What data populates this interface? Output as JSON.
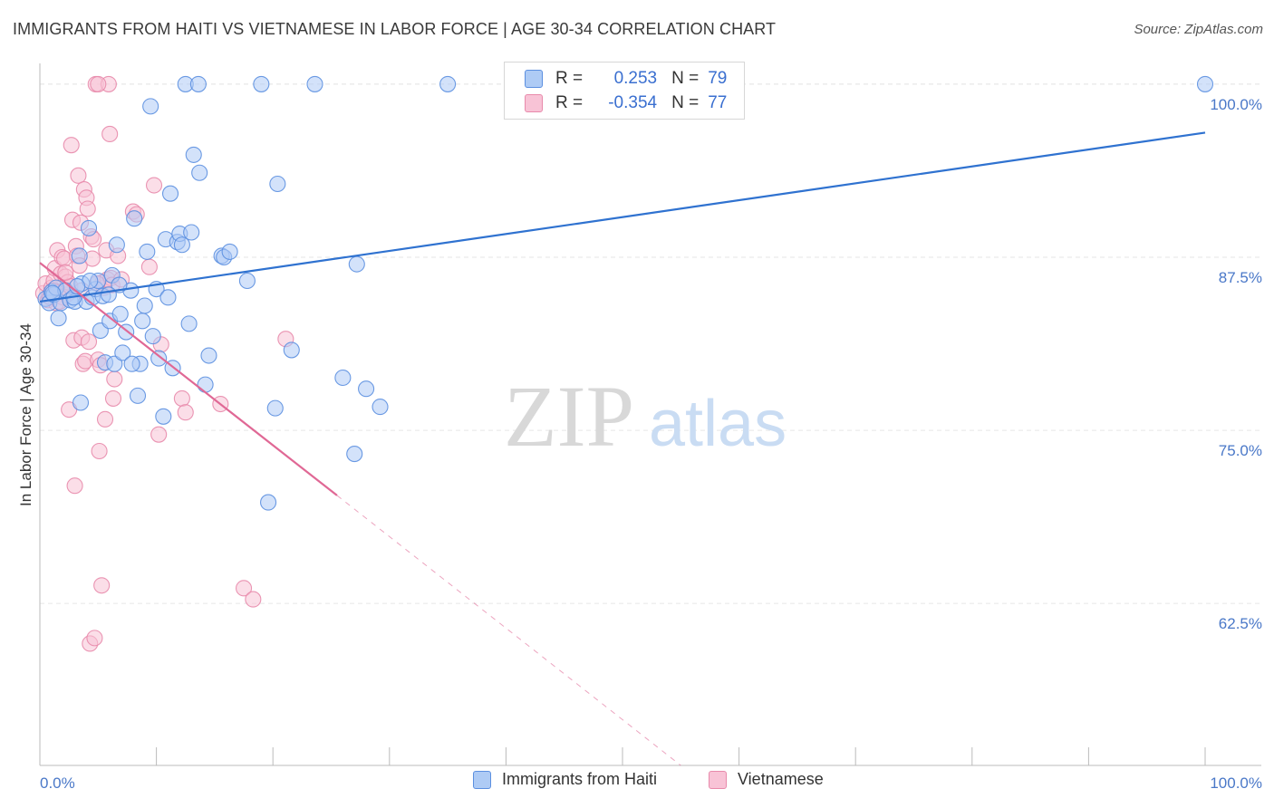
{
  "title": "IMMIGRANTS FROM HAITI VS VIETNAMESE IN LABOR FORCE | AGE 30-34 CORRELATION CHART",
  "source": "Source: ZipAtlas.com",
  "watermark": {
    "zip": "ZIP",
    "atlas": "atlas"
  },
  "legend": {
    "series1": {
      "r_label": "R =",
      "r_value": "0.253",
      "n_label": "N =",
      "n_value": "79"
    },
    "series2": {
      "r_label": "R =",
      "r_value": "-0.354",
      "n_label": "N =",
      "n_value": "77"
    }
  },
  "colors": {
    "blue_fill": "#aecbf5",
    "blue_stroke": "#5b8fe0",
    "blue_line": "#2f72d0",
    "pink_fill": "#f8c3d6",
    "pink_stroke": "#e88aab",
    "pink_line": "#e06895",
    "grid": "#e6e6e6",
    "axis": "#bbbbbb"
  },
  "chart_data": {
    "type": "scatter",
    "title": "IMMIGRANTS FROM HAITI VS VIETNAMESE IN LABOR FORCE | AGE 30-34 CORRELATION CHART",
    "xlabel": "",
    "ylabel": "In Labor Force | Age 30-34",
    "xlim": [
      0,
      100
    ],
    "ylim": [
      50.8,
      101.5
    ],
    "x_tick_labels": [
      "0.0%",
      "100.0%"
    ],
    "y_ticks": [
      62.5,
      75.0,
      87.5,
      100.0
    ],
    "y_tick_labels": [
      "62.5%",
      "75.0%",
      "87.5%",
      "100.0%"
    ],
    "series": [
      {
        "name": "Immigrants from Haiti",
        "color": "blue",
        "r": 0.253,
        "n": 79,
        "trend": {
          "x0": 0,
          "y0": 84.3,
          "x1": 100,
          "y1": 96.5
        },
        "points": [
          [
            0.5,
            84.5
          ],
          [
            0.8,
            84.2
          ],
          [
            1,
            85
          ],
          [
            1.2,
            84.8
          ],
          [
            1.4,
            85.3
          ],
          [
            1.6,
            83.1
          ],
          [
            1.8,
            84.2
          ],
          [
            2.2,
            85.1
          ],
          [
            2.6,
            84.4
          ],
          [
            3,
            84.3
          ],
          [
            3.4,
            87.6
          ],
          [
            3.5,
            77
          ],
          [
            3.6,
            85.6
          ],
          [
            4,
            84.3
          ],
          [
            4.2,
            89.6
          ],
          [
            4.5,
            84.6
          ],
          [
            4.8,
            85.2
          ],
          [
            5,
            85.8
          ],
          [
            5.2,
            82.2
          ],
          [
            5.4,
            84.7
          ],
          [
            5.6,
            79.9
          ],
          [
            6,
            82.9
          ],
          [
            6.2,
            86.2
          ],
          [
            6.4,
            79.8
          ],
          [
            6.6,
            88.4
          ],
          [
            6.9,
            83.4
          ],
          [
            7.1,
            80.6
          ],
          [
            7.4,
            82.1
          ],
          [
            7.8,
            85.1
          ],
          [
            8.1,
            90.3
          ],
          [
            8.4,
            77.5
          ],
          [
            8.6,
            79.8
          ],
          [
            8.8,
            82.9
          ],
          [
            9,
            84
          ],
          [
            9.2,
            87.9
          ],
          [
            9.5,
            98.4
          ],
          [
            10,
            85.2
          ],
          [
            10.2,
            80.2
          ],
          [
            10.6,
            76
          ],
          [
            10.8,
            88.8
          ],
          [
            11,
            84.6
          ],
          [
            11.2,
            92.1
          ],
          [
            11.4,
            79.5
          ],
          [
            11.8,
            88.6
          ],
          [
            12,
            89.2
          ],
          [
            12.2,
            88.4
          ],
          [
            12.5,
            100
          ],
          [
            12.8,
            82.7
          ],
          [
            13,
            89.3
          ],
          [
            13.2,
            94.9
          ],
          [
            13.6,
            100
          ],
          [
            13.7,
            93.6
          ],
          [
            14.2,
            78.3
          ],
          [
            14.5,
            80.4
          ],
          [
            15.6,
            87.6
          ],
          [
            15.8,
            87.5
          ],
          [
            16.3,
            87.9
          ],
          [
            17.8,
            85.8
          ],
          [
            19,
            100
          ],
          [
            19.6,
            69.8
          ],
          [
            20.2,
            76.6
          ],
          [
            20.4,
            92.8
          ],
          [
            21.6,
            80.8
          ],
          [
            23.6,
            100
          ],
          [
            26,
            78.8
          ],
          [
            27,
            73.3
          ],
          [
            27.2,
            87
          ],
          [
            28,
            78
          ],
          [
            29.2,
            76.7
          ],
          [
            35,
            100
          ],
          [
            100,
            100
          ],
          [
            4.3,
            85.8
          ],
          [
            6.8,
            85.5
          ],
          [
            9.7,
            81.8
          ],
          [
            5.9,
            84.8
          ],
          [
            2.9,
            84.6
          ],
          [
            1.1,
            84.9
          ],
          [
            7.9,
            79.8
          ],
          [
            3.2,
            85.4
          ]
        ]
      },
      {
        "name": "Vietnamese",
        "color": "pink",
        "r": -0.354,
        "n": 77,
        "trend": {
          "x0": 0,
          "y0": 87.1,
          "x1": 25.5,
          "y1": 70.3
        },
        "trend_dashed": {
          "x0": 25.5,
          "y0": 70.3,
          "x1": 55,
          "y1": 50.8
        },
        "points": [
          [
            0.3,
            84.9
          ],
          [
            0.5,
            85.6
          ],
          [
            0.7,
            84.4
          ],
          [
            0.8,
            84.7
          ],
          [
            1,
            85.3
          ],
          [
            1.2,
            85.8
          ],
          [
            1.3,
            86.7
          ],
          [
            1.4,
            84.2
          ],
          [
            1.5,
            88
          ],
          [
            1.6,
            85
          ],
          [
            1.8,
            86.3
          ],
          [
            1.9,
            87.5
          ],
          [
            2,
            84.6
          ],
          [
            2.1,
            87.4
          ],
          [
            2.2,
            86.1
          ],
          [
            2.3,
            84.8
          ],
          [
            2.4,
            85.7
          ],
          [
            2.5,
            76.5
          ],
          [
            2.6,
            85.4
          ],
          [
            2.7,
            95.6
          ],
          [
            2.8,
            90.2
          ],
          [
            2.9,
            81.5
          ],
          [
            3,
            71
          ],
          [
            3.1,
            88.3
          ],
          [
            3.2,
            87.6
          ],
          [
            3.3,
            93.4
          ],
          [
            3.4,
            86.9
          ],
          [
            3.5,
            90
          ],
          [
            3.6,
            81.7
          ],
          [
            3.7,
            79.8
          ],
          [
            3.8,
            92.4
          ],
          [
            3.9,
            80
          ],
          [
            4,
            91.8
          ],
          [
            4.1,
            91
          ],
          [
            4.2,
            81.4
          ],
          [
            4.3,
            59.6
          ],
          [
            4.4,
            89
          ],
          [
            4.5,
            87.4
          ],
          [
            4.6,
            88.8
          ],
          [
            4.7,
            60
          ],
          [
            4.8,
            100
          ],
          [
            5,
            80.1
          ],
          [
            5.1,
            73.5
          ],
          [
            5.2,
            79.7
          ],
          [
            5.3,
            63.8
          ],
          [
            5.4,
            85.7
          ],
          [
            5.5,
            85.3
          ],
          [
            5.6,
            75.8
          ],
          [
            5.7,
            88
          ],
          [
            5.8,
            85.9
          ],
          [
            5.9,
            100
          ],
          [
            6,
            96.4
          ],
          [
            6.1,
            86
          ],
          [
            6.2,
            85.5
          ],
          [
            6.3,
            77.3
          ],
          [
            6.4,
            78.7
          ],
          [
            6.7,
            87.6
          ],
          [
            7,
            85.9
          ],
          [
            8,
            90.8
          ],
          [
            8.3,
            90.6
          ],
          [
            9.4,
            86.8
          ],
          [
            9.8,
            92.7
          ],
          [
            10.2,
            74.7
          ],
          [
            10.4,
            81.2
          ],
          [
            12.2,
            77.3
          ],
          [
            12.5,
            76.3
          ],
          [
            15.5,
            76.9
          ],
          [
            17.5,
            63.6
          ],
          [
            18.3,
            62.8
          ],
          [
            21.1,
            81.6
          ],
          [
            1.1,
            85.1
          ],
          [
            0.9,
            84.6
          ],
          [
            2.2,
            86.4
          ],
          [
            3.6,
            85.1
          ],
          [
            5,
            100
          ],
          [
            4.9,
            85.6
          ],
          [
            1.7,
            84.3
          ]
        ]
      }
    ]
  },
  "bottom_legend": {
    "item1": "Immigrants from Haiti",
    "item2": "Vietnamese"
  }
}
